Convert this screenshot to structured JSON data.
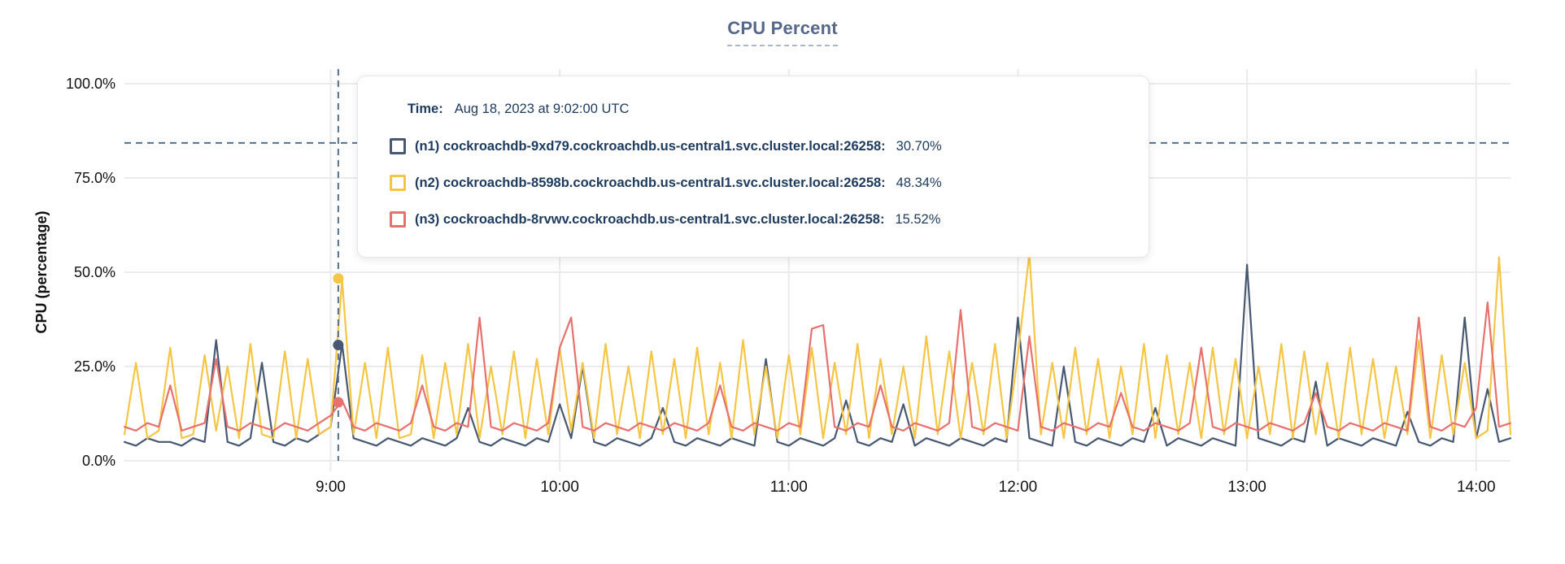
{
  "title": "CPU Percent",
  "tooltip": {
    "time_label": "Time:",
    "time_value": "Aug 18, 2023 at 9:02:00 UTC",
    "rows": [
      {
        "name": "(n1) cockroachdb-9xd79.cockroachdb.us-central1.svc.cluster.local:26258:",
        "value": "30.70%",
        "color": "#475872"
      },
      {
        "name": "(n2) cockroachdb-8598b.cockroachdb.us-central1.svc.cluster.local:26258:",
        "value": "48.34%",
        "color": "#F5C543"
      },
      {
        "name": "(n3) cockroachdb-8rvwv.cockroachdb.us-central1.svc.cluster.local:26258:",
        "value": "15.52%",
        "color": "#E8716D"
      }
    ]
  },
  "colors": {
    "n1": "#475872",
    "n2": "#F5C543",
    "n3": "#E8716D",
    "grid": "#ebebeb",
    "crosshair": "#54708c",
    "axis_text": "#111111",
    "tooltip_text": "#1d3a5f",
    "title_text": "#55678a"
  },
  "chart_data": {
    "type": "line",
    "title": "CPU Percent",
    "xlabel": "",
    "ylabel": "CPU (percentage)",
    "ylim": [
      0,
      100
    ],
    "grid": true,
    "legend_position": "tooltip-overlay",
    "y_tick_percents": [
      100,
      75,
      50,
      25,
      0
    ],
    "y_tick_labels": [
      "100.0%",
      "75.0%",
      "50.0%",
      "25.0%",
      "0.0%"
    ],
    "x_start_min": 486,
    "x_end_min": 849,
    "x_step_min": 3,
    "x_tick_minutes": [
      540,
      600,
      660,
      720,
      780,
      840
    ],
    "x_tick_labels": [
      "9:00",
      "10:00",
      "11:00",
      "12:00",
      "13:00",
      "14:00"
    ],
    "hover": {
      "time_min": 542,
      "time_label": "Aug 18, 2023 at 9:02:00 UTC",
      "crosshair_y_percent": 84.3,
      "values": [
        30.7,
        48.34,
        15.52
      ]
    },
    "series": [
      {
        "name": "(n1) cockroachdb-9xd79.cockroachdb.us-central1.svc.cluster.local:26258",
        "color": "#475872",
        "values": [
          5,
          4,
          6,
          5,
          5,
          4,
          6,
          5,
          32,
          5,
          4,
          6,
          26,
          5,
          4,
          6,
          5,
          7,
          9,
          31,
          6,
          5,
          4,
          6,
          5,
          4,
          6,
          5,
          4,
          6,
          14,
          5,
          4,
          6,
          5,
          4,
          6,
          5,
          15,
          6,
          25,
          5,
          4,
          6,
          5,
          4,
          6,
          14,
          5,
          4,
          6,
          5,
          4,
          6,
          5,
          4,
          27,
          5,
          4,
          6,
          5,
          4,
          6,
          16,
          5,
          4,
          6,
          5,
          15,
          4,
          6,
          5,
          4,
          6,
          5,
          4,
          6,
          5,
          38,
          6,
          5,
          4,
          25,
          5,
          4,
          6,
          5,
          4,
          6,
          5,
          14,
          4,
          6,
          5,
          4,
          6,
          5,
          4,
          52,
          6,
          5,
          4,
          6,
          5,
          21,
          4,
          6,
          5,
          4,
          6,
          5,
          4,
          13,
          5,
          4,
          6,
          5,
          38,
          6,
          19,
          5,
          6
        ]
      },
      {
        "name": "(n2) cockroachdb-8598b.cockroachdb.us-central1.svc.cluster.local:26258",
        "color": "#F5C543",
        "values": [
          7,
          26,
          6,
          8,
          30,
          6,
          7,
          28,
          8,
          25,
          6,
          31,
          7,
          6,
          29,
          6,
          27,
          7,
          9,
          48,
          7,
          26,
          6,
          30,
          6,
          7,
          28,
          6,
          26,
          7,
          31,
          6,
          25,
          7,
          29,
          6,
          27,
          7,
          30,
          8,
          26,
          6,
          31,
          7,
          25,
          6,
          29,
          7,
          27,
          6,
          30,
          7,
          26,
          6,
          32,
          7,
          25,
          6,
          28,
          7,
          30,
          6,
          26,
          7,
          31,
          6,
          27,
          7,
          25,
          6,
          33,
          7,
          29,
          6,
          26,
          7,
          31,
          6,
          28,
          55,
          7,
          26,
          6,
          30,
          7,
          27,
          6,
          25,
          7,
          31,
          6,
          28,
          7,
          26,
          6,
          30,
          7,
          27,
          6,
          25,
          7,
          31,
          6,
          29,
          7,
          26,
          6,
          30,
          7,
          27,
          6,
          25,
          7,
          32,
          6,
          28,
          7,
          26,
          6,
          8,
          54,
          7
        ]
      },
      {
        "name": "(n3) cockroachdb-8rvwv.cockroachdb.us-central1.svc.cluster.local:26258",
        "color": "#E8716D",
        "values": [
          9,
          8,
          10,
          9,
          20,
          8,
          9,
          10,
          27,
          9,
          8,
          10,
          9,
          8,
          10,
          9,
          8,
          10,
          12,
          16,
          9,
          8,
          10,
          9,
          8,
          10,
          20,
          9,
          8,
          10,
          9,
          38,
          9,
          8,
          10,
          9,
          8,
          10,
          30,
          38,
          9,
          8,
          10,
          9,
          8,
          10,
          9,
          8,
          10,
          9,
          8,
          10,
          20,
          9,
          8,
          10,
          9,
          8,
          10,
          9,
          35,
          36,
          9,
          8,
          10,
          9,
          20,
          9,
          8,
          10,
          9,
          8,
          10,
          40,
          9,
          8,
          10,
          9,
          8,
          33,
          9,
          8,
          10,
          9,
          8,
          10,
          9,
          18,
          9,
          8,
          10,
          9,
          8,
          10,
          30,
          9,
          8,
          10,
          9,
          8,
          10,
          9,
          8,
          10,
          18,
          9,
          8,
          10,
          9,
          8,
          10,
          9,
          8,
          38,
          9,
          8,
          10,
          9,
          14,
          42,
          9,
          10
        ]
      }
    ]
  },
  "layout_note": ""
}
